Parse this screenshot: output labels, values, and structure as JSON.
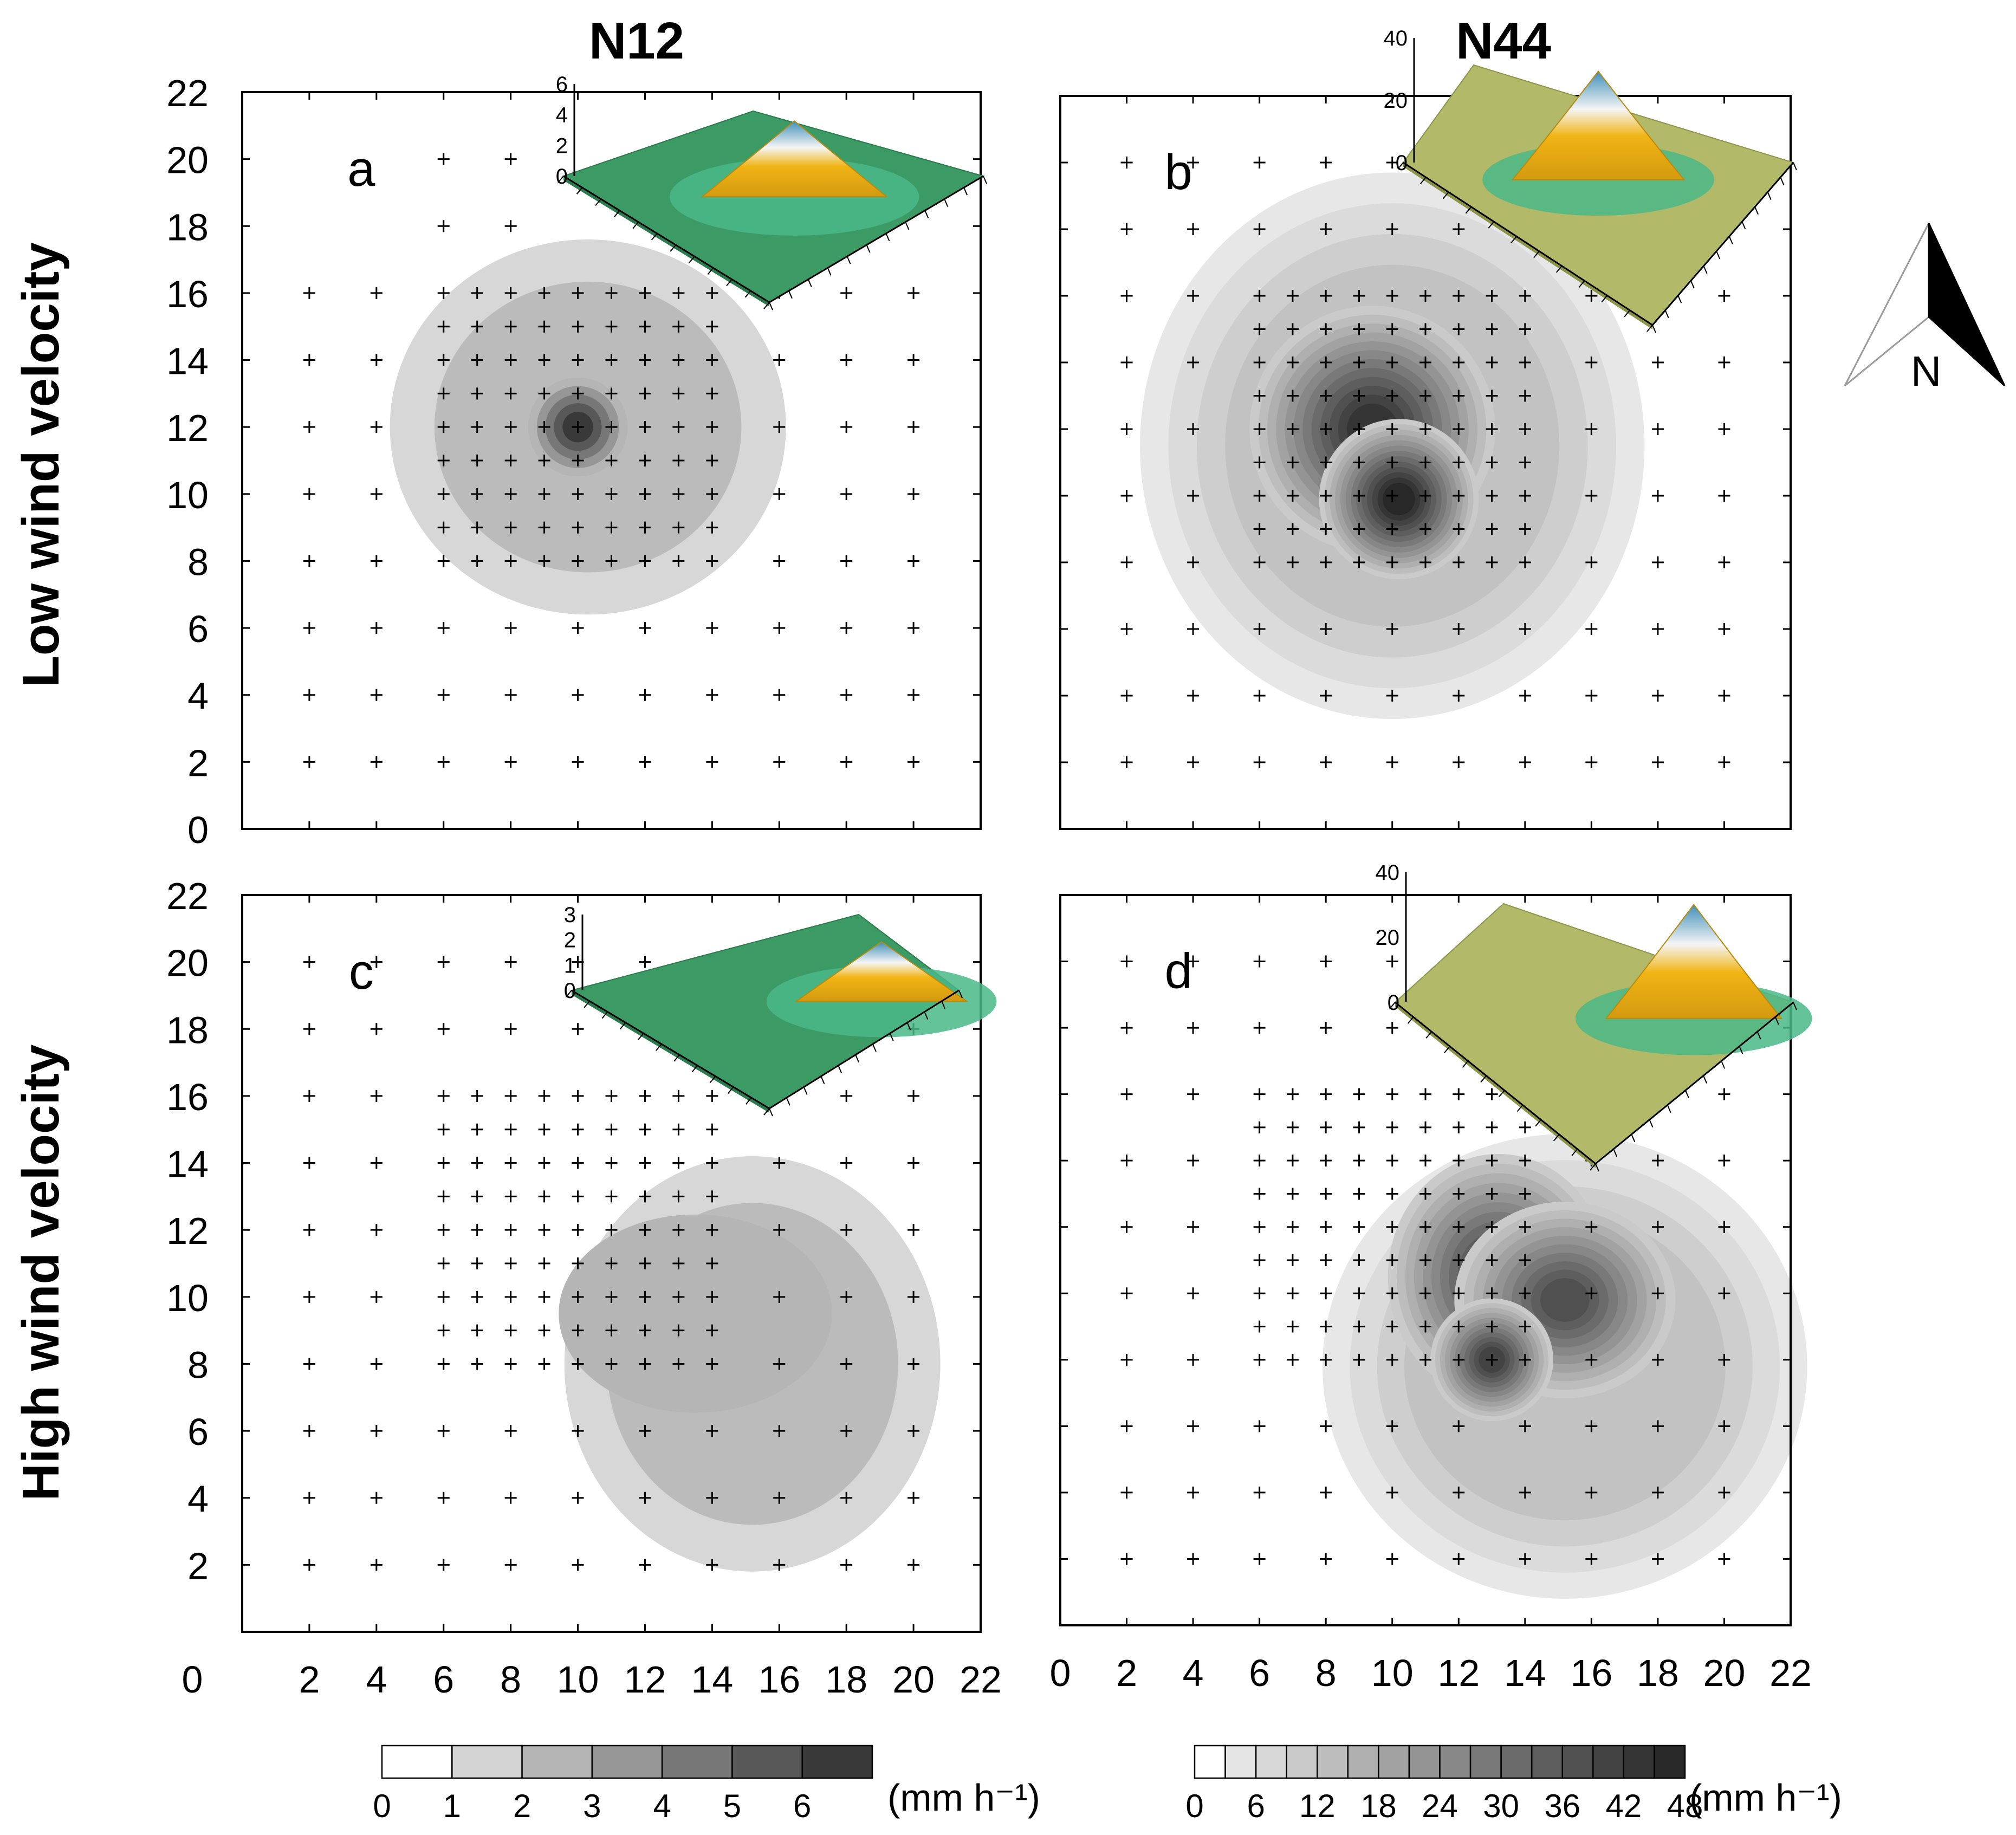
{
  "figure": {
    "column_titles": [
      "N12",
      "N44"
    ],
    "row_titles": [
      "Low wind velocity",
      "High wind velocity"
    ],
    "north_label": "N"
  },
  "chart_data": [
    {
      "type": "heatmap",
      "panel_label": "a",
      "group": "N12",
      "wind": "Low wind velocity",
      "xlim": [
        0,
        22
      ],
      "ylim": [
        0,
        22
      ],
      "xticks": [],
      "yticks": [
        0,
        2,
        4,
        6,
        8,
        10,
        12,
        14,
        16,
        18,
        20,
        22
      ],
      "scale": "n12",
      "peaks": [
        {
          "x": 10,
          "y": 12,
          "value": 6.8,
          "sx": 0.8,
          "sy": 0.8
        }
      ],
      "plateau": {
        "x": 10.3,
        "y": 12,
        "value": 2.6,
        "rx": 5.9,
        "ry": 5.6
      },
      "grid": {
        "coarse": {
          "x": [
            2,
            20
          ],
          "y": [
            2,
            16
          ],
          "step": 2,
          "extra_y": [
            18,
            20
          ],
          "extra_x": [
            6,
            8
          ]
        },
        "fine": {
          "x": [
            6,
            14
          ],
          "y": [
            8,
            16
          ],
          "step": 1
        }
      },
      "inset": {
        "zticks": [
          "6",
          "4",
          "2",
          "0"
        ],
        "terrain": "green",
        "peak_pos": 0.55
      }
    },
    {
      "type": "heatmap",
      "panel_label": "b",
      "group": "N44",
      "wind": "Low wind velocity",
      "xlim": [
        0,
        22
      ],
      "ylim": [
        0,
        22
      ],
      "xticks": [],
      "yticks": [],
      "scale": "n44",
      "peaks": [
        {
          "x": 9.4,
          "y": 12,
          "value": 44,
          "sx": 2.0,
          "sy": 2.0
        },
        {
          "x": 10.2,
          "y": 9.9,
          "value": 47,
          "sx": 1.3,
          "sy": 1.3
        }
      ],
      "plateau": {
        "x": 10,
        "y": 11.5,
        "value": 14,
        "rx": 7.6,
        "ry": 8.2
      },
      "grid": {
        "coarse": {
          "x": [
            2,
            20
          ],
          "y": [
            2,
            20
          ],
          "step": 2
        },
        "fine": {
          "x": [
            6,
            14
          ],
          "y": [
            8,
            16
          ],
          "step": 1
        }
      },
      "inset": {
        "zticks": [
          "40",
          "20",
          "0"
        ],
        "terrain": "olive",
        "peak_pos": 0.5
      }
    },
    {
      "type": "heatmap",
      "panel_label": "c",
      "group": "N12",
      "wind": "High wind velocity",
      "xlim": [
        0,
        22
      ],
      "ylim": [
        0,
        22
      ],
      "xticks": [
        2,
        4,
        6,
        8,
        10,
        12,
        14,
        16,
        18,
        20,
        22
      ],
      "yticks": [
        2,
        4,
        6,
        8,
        10,
        12,
        14,
        16,
        18,
        20,
        22
      ],
      "x_origin_label": "0",
      "scale": "n12",
      "peaks": [
        {
          "x": 13.5,
          "y": 9.5,
          "value": 2.0,
          "sx": 2.2,
          "sy": 1.6
        }
      ],
      "plateau": {
        "x": 15.2,
        "y": 8.0,
        "value": 2.2,
        "rx": 5.6,
        "ry": 6.2
      },
      "grid": {
        "coarse": {
          "x": [
            2,
            20
          ],
          "y": [
            2,
            20
          ],
          "step": 2
        },
        "fine": {
          "x": [
            6,
            14
          ],
          "y": [
            8,
            16
          ],
          "step": 1
        }
      },
      "inset": {
        "zticks": [
          "3",
          "2",
          "1",
          "0"
        ],
        "terrain": "green",
        "peak_pos": 0.8
      }
    },
    {
      "type": "heatmap",
      "panel_label": "d",
      "group": "N44",
      "wind": "High wind velocity",
      "xlim": [
        0,
        22
      ],
      "ylim": [
        0,
        22
      ],
      "xticks": [
        0,
        2,
        4,
        6,
        8,
        10,
        12,
        14,
        16,
        18,
        20,
        22
      ],
      "yticks": [],
      "scale": "n44",
      "peaks": [
        {
          "x": 13.2,
          "y": 10.5,
          "value": 40,
          "sx": 1.8,
          "sy": 2.0
        },
        {
          "x": 15.2,
          "y": 9.8,
          "value": 38,
          "sx": 1.8,
          "sy": 1.6
        },
        {
          "x": 13.0,
          "y": 8.0,
          "value": 40,
          "sx": 1.0,
          "sy": 1.0
        }
      ],
      "plateau": {
        "x": 15.2,
        "y": 7.8,
        "value": 14,
        "rx": 7.3,
        "ry": 7.0
      },
      "grid": {
        "coarse": {
          "x": [
            2,
            20
          ],
          "y": [
            2,
            20
          ],
          "step": 2
        },
        "fine": {
          "x": [
            6,
            14
          ],
          "y": [
            8,
            16
          ],
          "step": 1
        }
      },
      "inset": {
        "zticks": [
          "40",
          "20",
          "0"
        ],
        "terrain": "olive",
        "peak_pos": 0.75
      }
    }
  ],
  "legends": {
    "n12": {
      "ticks": [
        "0",
        "1",
        "2",
        "3",
        "4",
        "5",
        "6"
      ],
      "levels": [
        0,
        1,
        2,
        3,
        4,
        5,
        6,
        7
      ],
      "unit": "(mm h⁻¹)"
    },
    "n44": {
      "ticks": [
        "0",
        "6",
        "12",
        "18",
        "24",
        "30",
        "36",
        "42",
        "48"
      ],
      "levels": [
        0,
        3,
        6,
        9,
        12,
        15,
        18,
        21,
        24,
        27,
        30,
        33,
        36,
        39,
        42,
        45,
        48
      ],
      "unit": "(mm h⁻¹)"
    }
  },
  "colors": {
    "axis": "#000000",
    "low": "#f3f3f3",
    "high": "#1a1a1a",
    "green": "#3c9a64",
    "olive": "#b2b968",
    "peak_yellow": "#f0b414",
    "peak_blue": "#4d9ab8"
  }
}
